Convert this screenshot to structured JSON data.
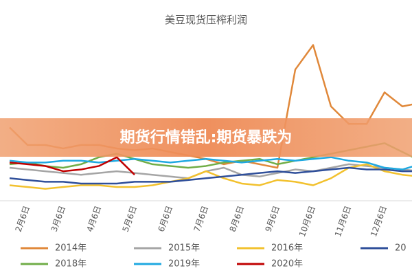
{
  "chart_data": {
    "type": "line",
    "title": "美豆现货压榨利润",
    "categories": [
      null,
      "2月6日",
      null,
      "3月6日",
      null,
      "4月6日",
      null,
      "5月6日",
      null,
      "6月6日",
      null,
      "7月6日",
      null,
      "8月6日",
      null,
      "9月6日",
      null,
      "10月6日",
      null,
      "11月6日",
      null,
      "12月6日",
      null,
      null
    ],
    "ylim": [
      0,
      100
    ],
    "series": [
      {
        "name": "2014年",
        "color": "#e0883a",
        "values": [
          43,
          33,
          33,
          31,
          33,
          33,
          31,
          30,
          31,
          29,
          27,
          25,
          22,
          24,
          22,
          20,
          76,
          90,
          55,
          45,
          45,
          63,
          55,
          57
        ]
      },
      {
        "name": "2015年",
        "color": "#a5a5a5",
        "values": [
          20,
          19,
          18,
          17,
          16,
          17,
          18,
          17,
          16,
          15,
          14,
          18,
          20,
          16,
          15,
          17,
          19,
          18,
          20,
          22,
          21,
          20,
          19,
          18
        ]
      },
      {
        "name": "2016年",
        "color": "#f2c12e",
        "values": [
          10,
          9,
          8,
          9,
          10,
          10,
          9,
          9,
          10,
          12,
          14,
          18,
          14,
          11,
          10,
          13,
          12,
          10,
          14,
          20,
          22,
          18,
          16,
          15
        ]
      },
      {
        "name": "20",
        "color": "#2f4f9a",
        "values": [
          14,
          13,
          12,
          12,
          11,
          11,
          11,
          12,
          12,
          12,
          13,
          14,
          15,
          16,
          17,
          18,
          17,
          18,
          19,
          20,
          19,
          19,
          18,
          18
        ]
      },
      {
        "name": "2018年",
        "color": "#70ad47",
        "values": [
          22,
          23,
          21,
          20,
          22,
          26,
          28,
          25,
          22,
          21,
          20,
          21,
          23,
          24,
          25,
          22,
          24,
          26,
          28,
          30,
          32,
          34,
          29,
          24
        ]
      },
      {
        "name": "2019年",
        "color": "#1fa8e0",
        "values": [
          24,
          23,
          23,
          24,
          24,
          23,
          24,
          25,
          24,
          23,
          24,
          25,
          24,
          23,
          24,
          25,
          24,
          25,
          26,
          24,
          23,
          20,
          19,
          22
        ]
      },
      {
        "name": "2020年",
        "color": "#c00000",
        "values": [
          23,
          22,
          21,
          18,
          19,
          21,
          26,
          16,
          null,
          null,
          null,
          null,
          null,
          null,
          null,
          null,
          null,
          null,
          null,
          null,
          null,
          null,
          null,
          null
        ]
      }
    ]
  },
  "banner": {
    "text": "期货行情错乱:期货暴跌为"
  }
}
